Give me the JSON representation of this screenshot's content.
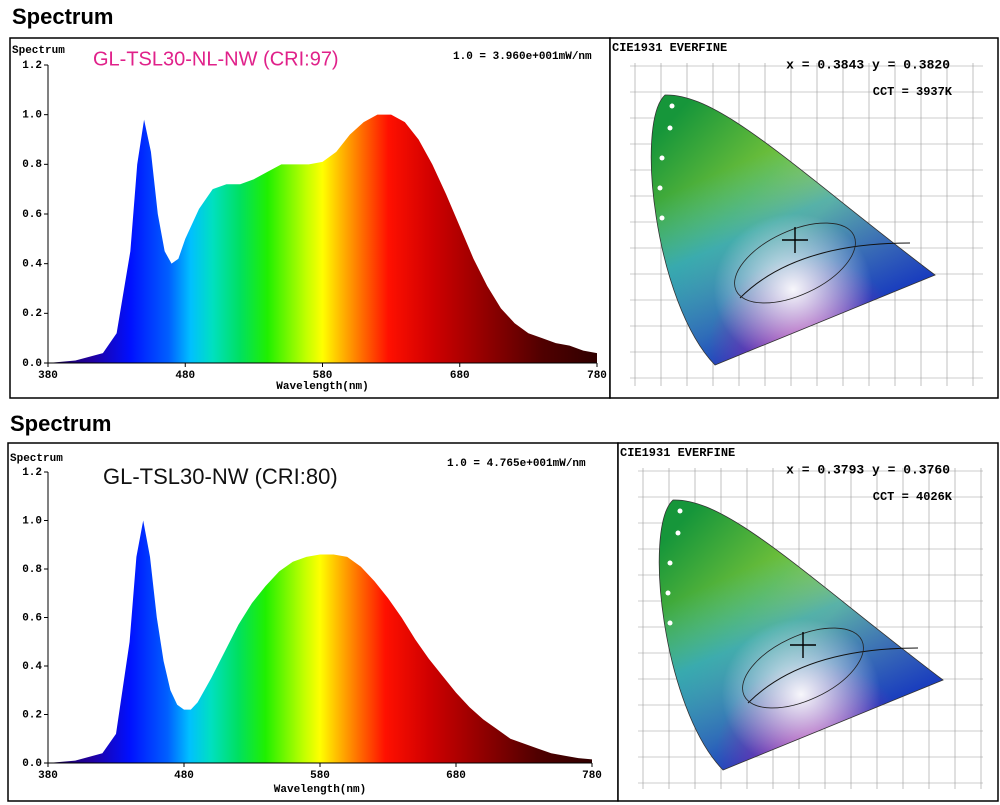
{
  "headings": [
    "Spectrum",
    "Spectrum"
  ],
  "chart_data": [
    {
      "type": "area",
      "title": "GL-TSL30-NL-NW (CRI:97)",
      "title_color": "#e0218a",
      "annotation": "1.0 = 3.960e+001mW/nm",
      "y_label": "Spectrum",
      "x_label": "Wavelength(nm)",
      "x": [
        380,
        400,
        420,
        430,
        440,
        445,
        450,
        455,
        460,
        465,
        470,
        475,
        480,
        490,
        500,
        510,
        520,
        530,
        540,
        550,
        560,
        570,
        580,
        590,
        600,
        610,
        620,
        630,
        640,
        650,
        660,
        670,
        680,
        690,
        700,
        710,
        720,
        730,
        740,
        750,
        760,
        770,
        780
      ],
      "values": [
        0,
        0.01,
        0.04,
        0.12,
        0.45,
        0.8,
        0.98,
        0.85,
        0.6,
        0.45,
        0.4,
        0.42,
        0.5,
        0.62,
        0.7,
        0.72,
        0.72,
        0.74,
        0.77,
        0.8,
        0.8,
        0.8,
        0.81,
        0.85,
        0.92,
        0.97,
        1.0,
        1.0,
        0.97,
        0.9,
        0.8,
        0.68,
        0.55,
        0.42,
        0.31,
        0.22,
        0.16,
        0.12,
        0.1,
        0.08,
        0.07,
        0.05,
        0.04
      ],
      "xlim": [
        380,
        780
      ],
      "xticks": [
        380,
        480,
        580,
        680,
        780
      ],
      "ylim": [
        0,
        1.2
      ],
      "yticks": [
        {
          "value": 0,
          "label": "0.0"
        },
        0.2,
        0.4,
        0.6,
        0.8,
        {
          "value": 1,
          "label": "1.0"
        },
        1.2
      ]
    },
    {
      "type": "area",
      "title": "GL-TSL30-NW (CRI:80)",
      "title_color": "#111111",
      "annotation": "1.0 = 4.765e+001mW/nm",
      "y_label": "Spectrum",
      "x_label": "Wavelength(nm)",
      "x": [
        380,
        400,
        420,
        430,
        440,
        445,
        450,
        455,
        460,
        465,
        470,
        475,
        480,
        485,
        490,
        500,
        510,
        520,
        530,
        540,
        550,
        560,
        570,
        580,
        590,
        600,
        610,
        620,
        630,
        640,
        650,
        660,
        670,
        680,
        690,
        700,
        710,
        720,
        730,
        740,
        750,
        760,
        770,
        780
      ],
      "values": [
        0,
        0.01,
        0.04,
        0.12,
        0.5,
        0.85,
        1.0,
        0.85,
        0.6,
        0.42,
        0.3,
        0.24,
        0.22,
        0.22,
        0.25,
        0.35,
        0.46,
        0.57,
        0.66,
        0.73,
        0.79,
        0.83,
        0.85,
        0.86,
        0.86,
        0.85,
        0.81,
        0.75,
        0.68,
        0.6,
        0.51,
        0.43,
        0.36,
        0.29,
        0.23,
        0.18,
        0.14,
        0.1,
        0.08,
        0.06,
        0.04,
        0.03,
        0.02,
        0.015
      ],
      "xlim": [
        380,
        780
      ],
      "xticks": [
        380,
        480,
        580,
        680,
        780
      ],
      "ylim": [
        0,
        1.2
      ],
      "yticks": [
        {
          "value": 0,
          "label": "0.0"
        },
        0.2,
        0.4,
        0.6,
        0.8,
        {
          "value": 1,
          "label": "1.0"
        },
        1.2
      ]
    }
  ],
  "cie": [
    {
      "title": "CIE1931  EVERFINE",
      "coords": "x = 0.3843 y = 0.3820",
      "cct": "CCT = 3937K"
    },
    {
      "title": "CIE1931  EVERFINE",
      "coords": "x = 0.3793 y = 0.3760",
      "cct": "CCT = 4026K"
    }
  ]
}
